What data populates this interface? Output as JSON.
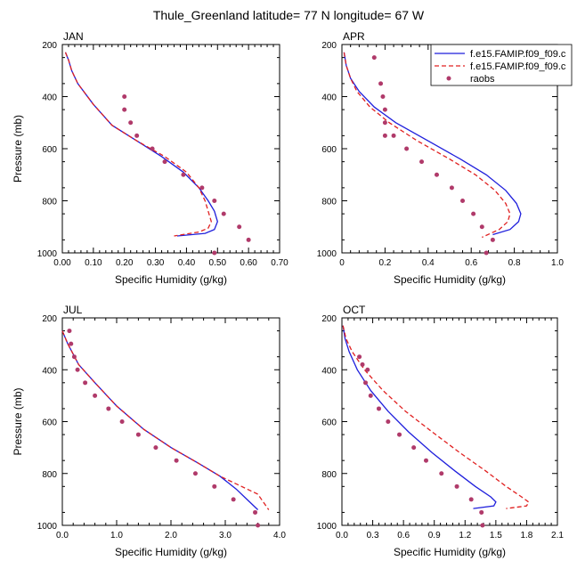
{
  "figure": {
    "title": "Thule_Greenland  latitude= 77 N longitude= 67 W"
  },
  "legend": {
    "entries": [
      {
        "label": "f.e15.FAMIP.f09_f09.c",
        "style": "solid",
        "color": "#1f1fdc"
      },
      {
        "label": "f.e15.FAMIP.f09_f09.c",
        "style": "dashed",
        "color": "#e02020"
      },
      {
        "label": "raobs",
        "style": "marker",
        "color": "#b03a6a"
      }
    ]
  },
  "colors": {
    "model1": "#1f1fdc",
    "model2": "#e02020",
    "raobs": "#b03a6a"
  },
  "chart_data": [
    {
      "type": "line",
      "panel": "JAN",
      "title": "JAN",
      "xlabel": "Specific Humidity (g/kg)",
      "ylabel": "Pressure (mb)",
      "xlim": [
        0,
        0.7
      ],
      "ylim": [
        1000,
        200
      ],
      "xticks": [
        "0.00",
        "0.10",
        "0.20",
        "0.30",
        "0.40",
        "0.50",
        "0.60",
        "0.70"
      ],
      "yticks": [
        "200",
        "400",
        "600",
        "800",
        "1000"
      ],
      "series": [
        {
          "name": "f.e15.FAMIP.f09_f09.c",
          "x": [
            0.01,
            0.02,
            0.03,
            0.05,
            0.1,
            0.16,
            0.24,
            0.32,
            0.39,
            0.44,
            0.47,
            0.49,
            0.5,
            0.49,
            0.46,
            0.37
          ],
          "y": [
            230,
            260,
            300,
            350,
            430,
            510,
            570,
            630,
            690,
            750,
            800,
            840,
            880,
            910,
            925,
            935
          ]
        },
        {
          "name": "f.e15.FAMIP.f09_f09.c",
          "x": [
            0.01,
            0.02,
            0.03,
            0.05,
            0.1,
            0.16,
            0.24,
            0.33,
            0.4,
            0.44,
            0.46,
            0.47,
            0.48,
            0.47,
            0.44,
            0.36
          ],
          "y": [
            230,
            260,
            300,
            350,
            430,
            510,
            570,
            630,
            690,
            750,
            800,
            840,
            880,
            905,
            920,
            935
          ]
        },
        {
          "name": "raobs",
          "x": [
            0.2,
            0.2,
            0.22,
            0.24,
            0.29,
            0.33,
            0.39,
            0.45,
            0.49,
            0.52,
            0.57,
            0.6,
            0.49
          ],
          "y": [
            400,
            450,
            500,
            550,
            600,
            650,
            700,
            750,
            800,
            850,
            900,
            950,
            1000
          ]
        }
      ]
    },
    {
      "type": "line",
      "panel": "APR",
      "title": "APR",
      "xlabel": "Specific Humidity (g/kg)",
      "ylabel": "",
      "xlim": [
        0,
        1.0
      ],
      "ylim": [
        1000,
        200
      ],
      "xticks": [
        "0",
        "0.2",
        "0.4",
        "0.6",
        "0.8",
        "1.0"
      ],
      "yticks": [
        "200",
        "400",
        "600",
        "800",
        "1000"
      ],
      "series": [
        {
          "name": "f.e15.FAMIP.f09_f09.c",
          "x": [
            0.01,
            0.02,
            0.04,
            0.08,
            0.15,
            0.25,
            0.4,
            0.55,
            0.67,
            0.76,
            0.81,
            0.83,
            0.82,
            0.78,
            0.7
          ],
          "y": [
            230,
            280,
            330,
            380,
            440,
            500,
            570,
            640,
            700,
            760,
            810,
            850,
            880,
            910,
            930
          ]
        },
        {
          "name": "f.e15.FAMIP.f09_f09.c",
          "x": [
            0.01,
            0.02,
            0.04,
            0.07,
            0.13,
            0.22,
            0.35,
            0.5,
            0.62,
            0.71,
            0.76,
            0.78,
            0.77,
            0.73,
            0.65
          ],
          "y": [
            230,
            280,
            330,
            380,
            440,
            500,
            570,
            640,
            700,
            760,
            810,
            850,
            880,
            910,
            940
          ]
        },
        {
          "name": "raobs",
          "x": [
            0.15,
            0.18,
            0.19,
            0.2,
            0.2,
            0.2,
            0.24,
            0.3,
            0.37,
            0.44,
            0.51,
            0.56,
            0.61,
            0.65,
            0.7,
            0.67
          ],
          "y": [
            250,
            350,
            400,
            450,
            500,
            550,
            550,
            600,
            650,
            700,
            750,
            800,
            850,
            900,
            950,
            1000
          ]
        }
      ]
    },
    {
      "type": "line",
      "panel": "JUL",
      "title": "JUL",
      "xlabel": "Specific Humidity (g/kg)",
      "ylabel": "Pressure (mb)",
      "xlim": [
        0,
        4.0
      ],
      "ylim": [
        1000,
        200
      ],
      "xticks": [
        "0.0",
        "1.0",
        "2.0",
        "3.0",
        "4.0"
      ],
      "yticks": [
        "200",
        "400",
        "600",
        "800",
        "1000"
      ],
      "series": [
        {
          "name": "f.e15.FAMIP.f09_f09.c",
          "x": [
            0.0,
            0.1,
            0.3,
            0.6,
            1.0,
            1.5,
            2.0,
            2.5,
            2.9,
            3.2,
            3.4,
            3.6
          ],
          "y": [
            250,
            300,
            380,
            450,
            540,
            630,
            700,
            760,
            810,
            860,
            900,
            940
          ]
        },
        {
          "name": "f.e15.FAMIP.f09_f09.c",
          "x": [
            0.0,
            0.1,
            0.3,
            0.6,
            1.0,
            1.5,
            2.0,
            2.5,
            2.9,
            3.3,
            3.6,
            3.7,
            3.8
          ],
          "y": [
            250,
            300,
            380,
            450,
            540,
            630,
            700,
            760,
            810,
            850,
            880,
            910,
            940
          ]
        },
        {
          "name": "raobs",
          "x": [
            0.13,
            0.16,
            0.22,
            0.28,
            0.42,
            0.6,
            0.85,
            1.1,
            1.4,
            1.72,
            2.1,
            2.45,
            2.8,
            3.15,
            3.55,
            3.6
          ],
          "y": [
            250,
            300,
            350,
            400,
            450,
            500,
            550,
            600,
            650,
            700,
            750,
            800,
            850,
            900,
            950,
            1000
          ]
        }
      ]
    },
    {
      "type": "line",
      "panel": "OCT",
      "title": "OCT",
      "xlabel": "Specific Humidity (g/kg)",
      "ylabel": "",
      "xlim": [
        0,
        2.1
      ],
      "ylim": [
        1000,
        200
      ],
      "xticks": [
        "0.0",
        "0.3",
        "0.6",
        "0.9",
        "1.2",
        "1.5",
        "1.8",
        "2.1"
      ],
      "yticks": [
        "200",
        "400",
        "600",
        "800",
        "1000"
      ],
      "series": [
        {
          "name": "f.e15.FAMIP.f09_f09.c",
          "x": [
            0.01,
            0.03,
            0.07,
            0.15,
            0.28,
            0.45,
            0.65,
            0.88,
            1.1,
            1.3,
            1.45,
            1.5,
            1.48,
            1.28
          ],
          "y": [
            230,
            280,
            330,
            400,
            480,
            560,
            640,
            720,
            790,
            850,
            890,
            910,
            925,
            935
          ]
        },
        {
          "name": "f.e15.FAMIP.f09_f09.c",
          "x": [
            0.01,
            0.04,
            0.1,
            0.22,
            0.4,
            0.62,
            0.88,
            1.15,
            1.4,
            1.6,
            1.75,
            1.82,
            1.8,
            1.6
          ],
          "y": [
            230,
            280,
            330,
            400,
            480,
            560,
            640,
            720,
            790,
            850,
            890,
            910,
            925,
            935
          ]
        },
        {
          "name": "raobs",
          "x": [
            0.17,
            0.2,
            0.25,
            0.23,
            0.28,
            0.36,
            0.45,
            0.56,
            0.7,
            0.82,
            0.97,
            1.12,
            1.26,
            1.36,
            1.37
          ],
          "y": [
            350,
            380,
            400,
            450,
            500,
            550,
            600,
            650,
            700,
            750,
            800,
            850,
            900,
            950,
            1000
          ]
        }
      ]
    }
  ]
}
